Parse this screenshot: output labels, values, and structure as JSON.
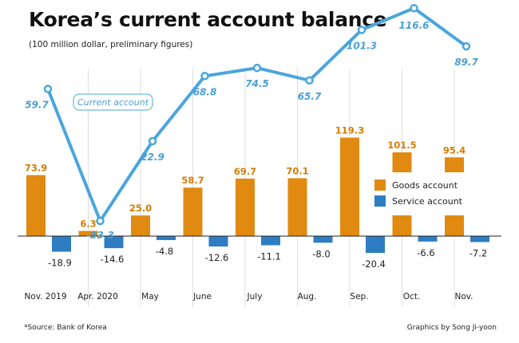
{
  "title": "Korea’s current account balance",
  "subtitle": "(100 million dollar, preliminary figures)",
  "source": "*Source: Bank of Korea",
  "credit": "Graphics by Song Ji-yoon",
  "colors": {
    "goods": "#e08a12",
    "service": "#2e7dc2",
    "current": "#4aa6dc",
    "current_label": "#4a9fd4",
    "goods_label": "#d67c00",
    "zero_line": "#222222",
    "divider": "#dddddd"
  },
  "chart_data": {
    "type": "bar",
    "categories": [
      "Nov. 2019",
      "Apr. 2020",
      "May",
      "June",
      "July",
      "Aug.",
      "Sep.",
      "Oct.",
      "Nov."
    ],
    "series": [
      {
        "name": "Goods account",
        "kind": "bar",
        "values": [
          73.9,
          6.3,
          25.0,
          58.7,
          69.7,
          70.1,
          119.3,
          101.5,
          95.4
        ],
        "labels": [
          "73.9",
          "6.3",
          "25.0",
          "58.7",
          "69.7",
          "70.1",
          "119.3",
          "101.5",
          "95.4"
        ]
      },
      {
        "name": "Service account",
        "kind": "bar",
        "values": [
          -18.9,
          -14.6,
          -4.8,
          -12.6,
          -11.1,
          -8.0,
          -20.4,
          -6.6,
          -7.2
        ],
        "labels": [
          "-18.9",
          "-14.6",
          "-4.8",
          "-12.6",
          "-11.1",
          "-8.0",
          "-20.4",
          "-6.6",
          "-7.2"
        ]
      },
      {
        "name": "Current account",
        "kind": "line",
        "values": [
          59.7,
          -33.3,
          22.9,
          68.8,
          74.5,
          65.7,
          101.3,
          116.6,
          89.7
        ],
        "labels": [
          "59.7",
          "-33.3",
          "22.9",
          "68.8",
          "74.5",
          "65.7",
          "101.3",
          "116.6",
          "89.7"
        ]
      }
    ],
    "legend": [
      "Goods account",
      "Service account"
    ],
    "line_label": "Current account"
  }
}
